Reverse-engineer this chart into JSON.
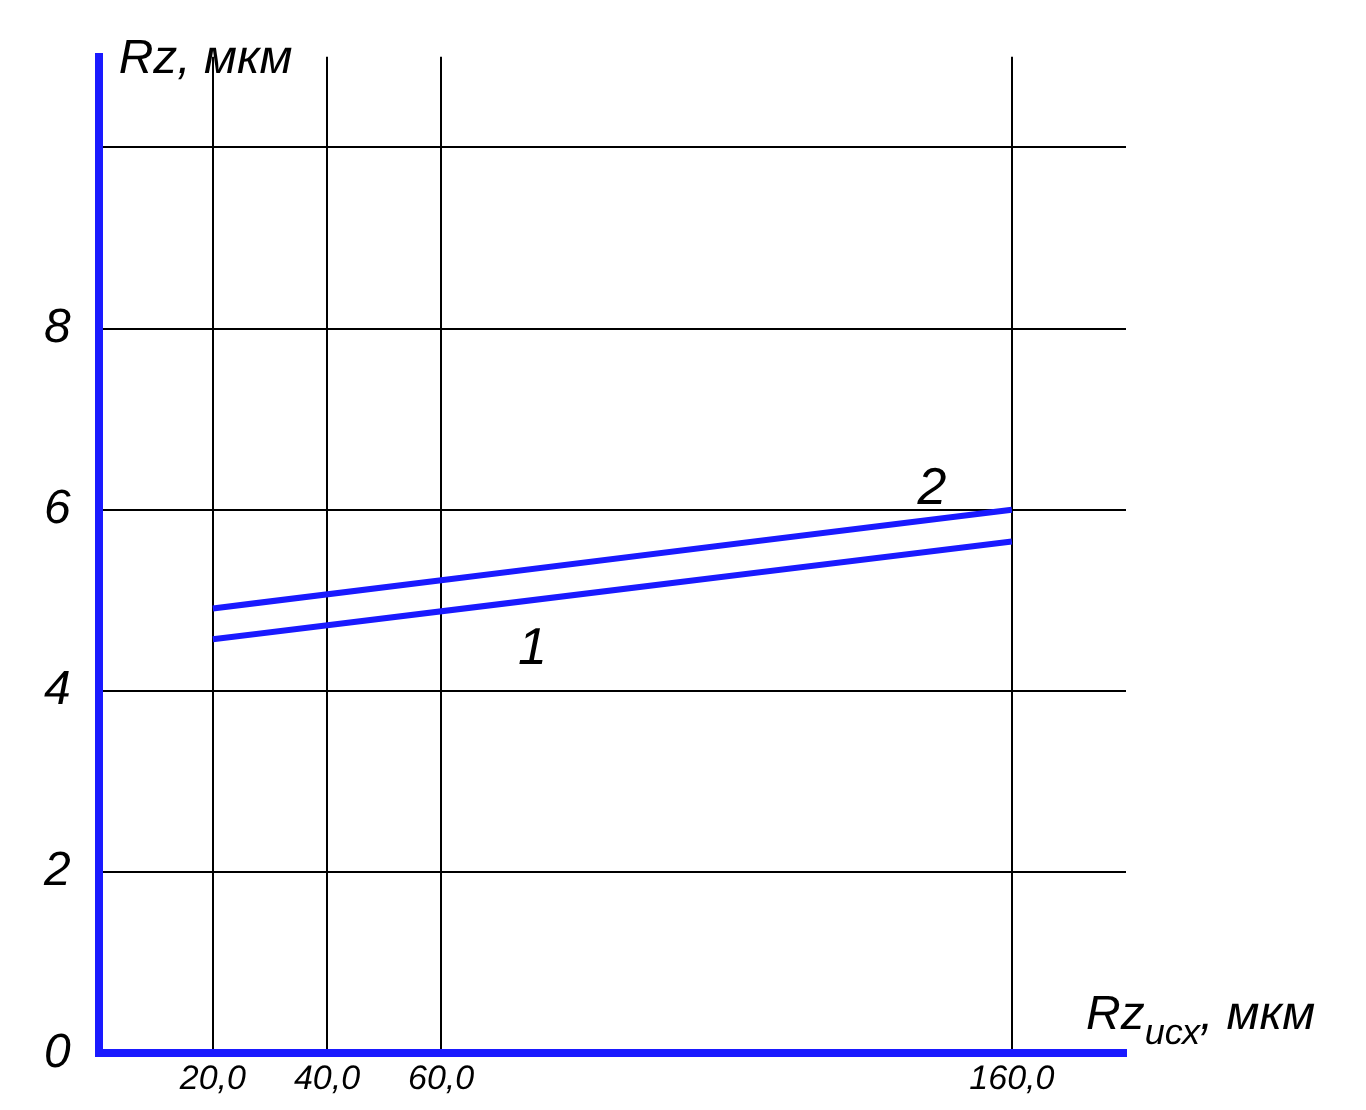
{
  "chart_data": {
    "type": "line",
    "xlabel": "Rz$_{исх}$, мкм",
    "ylabel": "Rz, мкм",
    "x": [
      20,
      160
    ],
    "series": [
      {
        "name": "1",
        "color": "#1a1aff",
        "values": [
          4.57,
          5.65
        ]
      },
      {
        "name": "2",
        "color": "#1a1aff",
        "values": [
          4.91,
          6.0
        ]
      }
    ],
    "xlim": [
      0,
      180
    ],
    "xticks": [
      {
        "value": 20,
        "label": "20,0"
      },
      {
        "value": 40,
        "label": "40,0"
      },
      {
        "value": 60,
        "label": "60,0"
      },
      {
        "value": 160,
        "label": "160,0"
      }
    ],
    "ylim": [
      0,
      11
    ],
    "yticks": [
      0,
      2,
      4,
      6,
      8,
      {
        "value": 10,
        "label": null
      }
    ],
    "grid": true,
    "legend": false,
    "marker": "none",
    "line_style": "solid"
  }
}
